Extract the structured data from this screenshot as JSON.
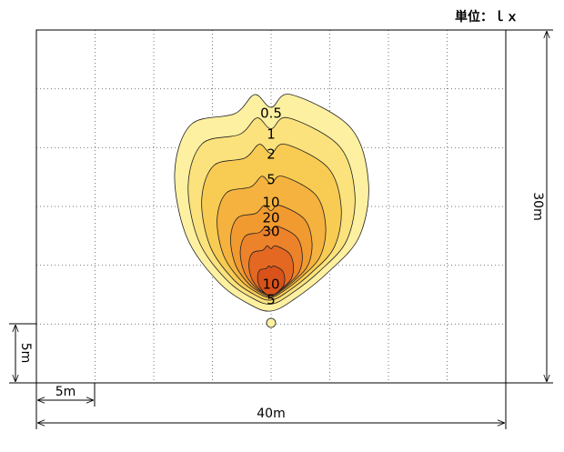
{
  "header": {
    "unit": "単位：ｌｘ"
  },
  "contours": {
    "labels": [
      "0.5",
      "1",
      "2",
      "5",
      "10",
      "20",
      "30",
      "10",
      "5"
    ]
  },
  "dimensions": {
    "height": "30m",
    "left_cell": "5m",
    "bottom_cell": "5m",
    "width": "40m"
  }
}
